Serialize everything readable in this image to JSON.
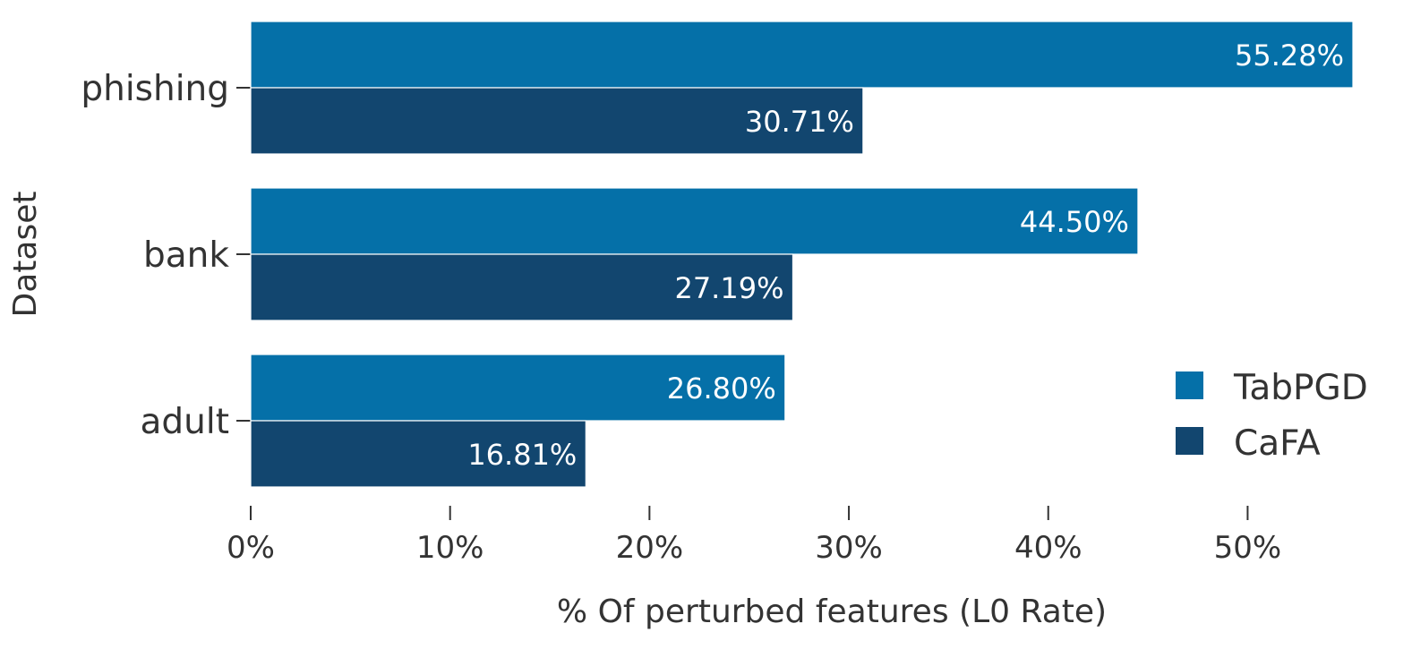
{
  "chart_data": {
    "type": "bar",
    "orientation": "horizontal",
    "categories": [
      "phishing",
      "bank",
      "adult"
    ],
    "series": [
      {
        "name": "TabPGD",
        "values": [
          55.28,
          44.5,
          26.8
        ],
        "labels": [
          "55.28%",
          "44.50%",
          "26.80%"
        ],
        "color": "#0570a8"
      },
      {
        "name": "CaFA",
        "values": [
          30.71,
          27.19,
          16.81
        ],
        "labels": [
          "30.71%",
          "27.19%",
          "16.81%"
        ],
        "color": "#12466f"
      }
    ],
    "xlabel": "% Of perturbed features (L0 Rate)",
    "ylabel": "Dataset",
    "xlim": [
      0,
      55.28
    ],
    "xticks": [
      0,
      10,
      20,
      30,
      40,
      50
    ],
    "xtick_labels": [
      "0%",
      "10%",
      "20%",
      "30%",
      "40%",
      "50%"
    ],
    "grid": false,
    "legend_position": "bottom-right"
  }
}
